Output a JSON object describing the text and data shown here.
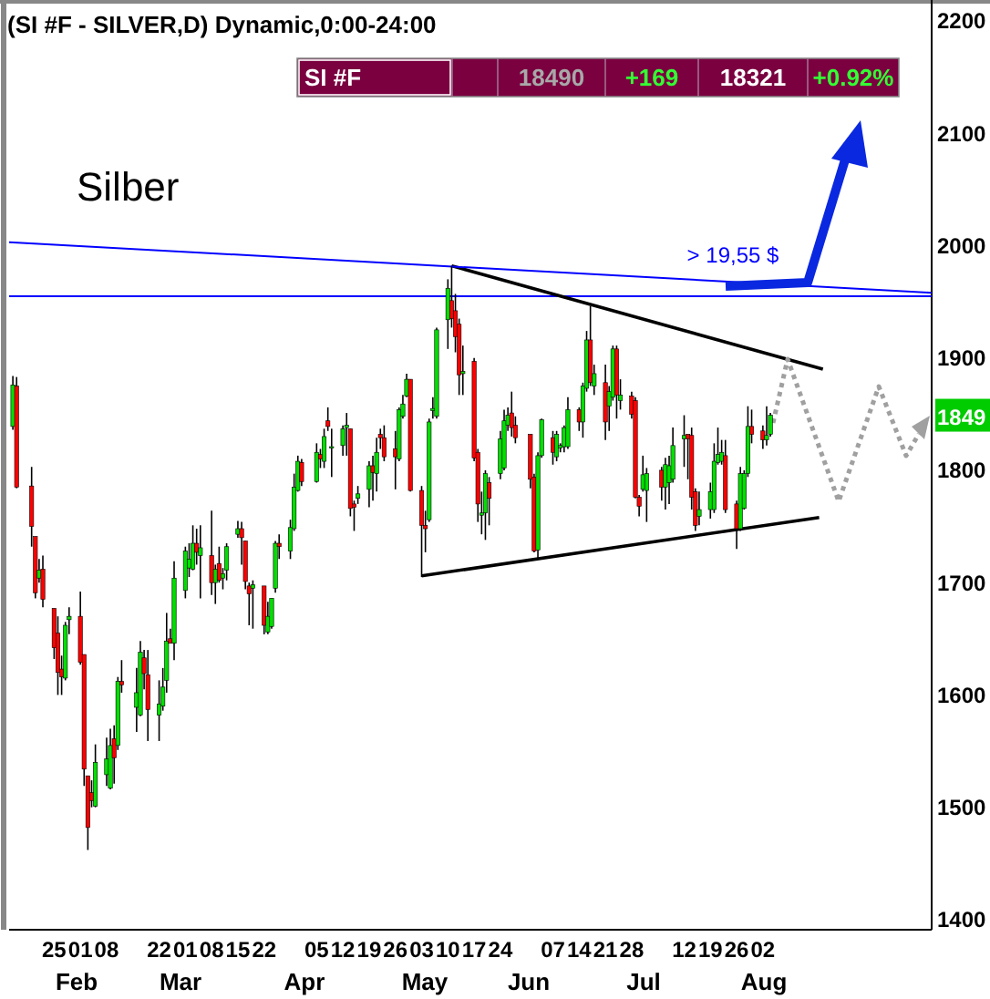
{
  "chart_data": {
    "type": "candlestick",
    "title": "(SI #F - SILVER,D) Dynamic,0:00-24:00",
    "subtitle": "Silber",
    "x": [
      "--01-14",
      "--01-15",
      "--01-19",
      "--01-20",
      "--01-21",
      "--01-22",
      "--01-25",
      "--01-26",
      "--01-27",
      "--01-28",
      "--01-29",
      "--02-01",
      "--02-02",
      "--02-03",
      "--02-04",
      "--02-05",
      "--02-08",
      "--02-09",
      "--02-10",
      "--02-11",
      "--02-12",
      "--02-16",
      "--02-17",
      "--02-18",
      "--02-19",
      "--02-22",
      "--02-23",
      "--02-24",
      "--02-25",
      "--02-26",
      "--03-01",
      "--03-02",
      "--03-03",
      "--03-04",
      "--03-05",
      "--03-08",
      "--03-09",
      "--03-10",
      "--03-11",
      "--03-12",
      "--03-15",
      "--03-16",
      "--03-17",
      "--03-18",
      "--03-19",
      "--03-22",
      "--03-23",
      "--03-24",
      "--03-25",
      "--03-26",
      "--03-29",
      "--03-30",
      "--03-31",
      "--04-01",
      "--04-05",
      "--04-06",
      "--04-07",
      "--04-08",
      "--04-09",
      "--04-12",
      "--04-13",
      "--04-14",
      "--04-15",
      "--04-16",
      "--04-19",
      "--04-20",
      "--04-21",
      "--04-22",
      "--04-23",
      "--04-26",
      "--04-27",
      "--04-28",
      "--04-29",
      "--04-30",
      "--05-03",
      "--05-04",
      "--05-05",
      "--05-06",
      "--05-07",
      "--05-10",
      "--05-11",
      "--05-12",
      "--05-13",
      "--05-14",
      "--05-17",
      "--05-18",
      "--05-19",
      "--05-20",
      "--05-21",
      "--05-24",
      "--05-25",
      "--05-26",
      "--05-27",
      "--05-28",
      "--06-01",
      "--06-02",
      "--06-03",
      "--06-04",
      "--06-07",
      "--06-08",
      "--06-09",
      "--06-10",
      "--06-11",
      "--06-14",
      "--06-15",
      "--06-16",
      "--06-17",
      "--06-18",
      "--06-21",
      "--06-22",
      "--06-23",
      "--06-24",
      "--06-25",
      "--06-28",
      "--06-29",
      "--06-30",
      "--07-01",
      "--07-02",
      "--07-06",
      "--07-07",
      "--07-08",
      "--07-09",
      "--07-12",
      "--07-13",
      "--07-14",
      "--07-15",
      "--07-16",
      "--07-19",
      "--07-20",
      "--07-21",
      "--07-22",
      "--07-23",
      "--07-26",
      "--07-27",
      "--07-28",
      "--07-29",
      "--07-30",
      "--08-02",
      "--08-03",
      "--08-04"
    ],
    "ohlc": [
      [
        1839,
        1884,
        1836,
        1876
      ],
      [
        1875,
        1883,
        1784,
        1785
      ],
      [
        1786,
        1803,
        1732,
        1750
      ],
      [
        1741,
        1741,
        1686,
        1691
      ],
      [
        1704,
        1721,
        1700,
        1711
      ],
      [
        1712,
        1724,
        1678,
        1685
      ],
      [
        1677,
        1677,
        1632,
        1642
      ],
      [
        1655,
        1670,
        1600,
        1620
      ],
      [
        1623,
        1635,
        1600,
        1616
      ],
      [
        1615,
        1665,
        1613,
        1662
      ],
      [
        1667,
        1678,
        1654,
        1670
      ],
      [
        1670,
        1692,
        1627,
        1629
      ],
      [
        1636,
        1636,
        1519,
        1534
      ],
      [
        1528,
        1528,
        1462,
        1482
      ],
      [
        1513,
        1524,
        1500,
        1506
      ],
      [
        1501,
        1556,
        1500,
        1540
      ],
      [
        1529,
        1562,
        1519,
        1543
      ],
      [
        1517,
        1570,
        1516,
        1555
      ],
      [
        1561,
        1573,
        1521,
        1544
      ],
      [
        1555,
        1616,
        1551,
        1612
      ],
      [
        1612,
        1631,
        1602,
        1609
      ],
      [
        1589,
        1624,
        1567,
        1602
      ],
      [
        1582,
        1648,
        1581,
        1638
      ],
      [
        1633,
        1640,
        1605,
        1619
      ],
      [
        1618,
        1640,
        1559,
        1587
      ],
      [
        1582,
        1613,
        1559,
        1592
      ],
      [
        1590,
        1624,
        1586,
        1607
      ],
      [
        1613,
        1673,
        1602,
        1648
      ],
      [
        1650,
        1659,
        1646,
        1646
      ],
      [
        1646,
        1719,
        1631,
        1704
      ],
      [
        1693,
        1732,
        1686,
        1728
      ],
      [
        1713,
        1735,
        1705,
        1721
      ],
      [
        1712,
        1751,
        1711,
        1735
      ],
      [
        1735,
        1748,
        1716,
        1727
      ],
      [
        1724,
        1751,
        1686,
        1731
      ],
      [
        1724,
        1764,
        1689,
        1700
      ],
      [
        1700,
        1716,
        1681,
        1712
      ],
      [
        1717,
        1732,
        1700,
        1702
      ],
      [
        1704,
        1713,
        1694,
        1708
      ],
      [
        1711,
        1735,
        1702,
        1732
      ],
      [
        1743,
        1755,
        1740,
        1748
      ],
      [
        1748,
        1754,
        1716,
        1740
      ],
      [
        1737,
        1737,
        1694,
        1701
      ],
      [
        1697,
        1700,
        1662,
        1690
      ],
      [
        1695,
        1702,
        1659,
        1698
      ],
      [
        1697,
        1697,
        1654,
        1662
      ],
      [
        1656,
        1683,
        1654,
        1670
      ],
      [
        1661,
        1686,
        1659,
        1686
      ],
      [
        1695,
        1737,
        1691,
        1735
      ],
      [
        1735,
        1743,
        1721,
        1732
      ],
      [
        1728,
        1756,
        1721,
        1749
      ],
      [
        1748,
        1797,
        1746,
        1785
      ],
      [
        1782,
        1813,
        1781,
        1808
      ],
      [
        1807,
        1810,
        1786,
        1790
      ],
      [
        1790,
        1824,
        1789,
        1816
      ],
      [
        1814,
        1819,
        1802,
        1810
      ],
      [
        1808,
        1837,
        1802,
        1830
      ],
      [
        1844,
        1856,
        1835,
        1839
      ],
      [
        1820,
        1837,
        1794,
        1821
      ],
      [
        1822,
        1840,
        1813,
        1837
      ],
      [
        1838,
        1851,
        1813,
        1840
      ],
      [
        1837,
        1837,
        1759,
        1766
      ],
      [
        1770,
        1773,
        1746,
        1767
      ],
      [
        1775,
        1786,
        1770,
        1779
      ],
      [
        1783,
        1808,
        1767,
        1804
      ],
      [
        1804,
        1813,
        1773,
        1798
      ],
      [
        1797,
        1829,
        1781,
        1816
      ],
      [
        1832,
        1837,
        1819,
        1829
      ],
      [
        1829,
        1840,
        1808,
        1812
      ],
      [
        1819,
        1835,
        1783,
        1812
      ],
      [
        1810,
        1856,
        1808,
        1854
      ],
      [
        1848,
        1867,
        1846,
        1859
      ],
      [
        1866,
        1886,
        1865,
        1881
      ],
      [
        1881,
        1881,
        1781,
        1782
      ],
      [
        1782,
        1786,
        1705,
        1751
      ],
      [
        1751,
        1764,
        1727,
        1748
      ],
      [
        1756,
        1846,
        1754,
        1843
      ],
      [
        1853,
        1865,
        1846,
        1855
      ],
      [
        1848,
        1927,
        1846,
        1925
      ],
      [
        1934,
        1970,
        1908,
        1962
      ],
      [
        1951,
        1982,
        1927,
        1935
      ],
      [
        1942,
        1957,
        1905,
        1919
      ],
      [
        1930,
        1935,
        1867,
        1885
      ],
      [
        1886,
        1911,
        1867,
        1888
      ],
      [
        1897,
        1900,
        1808,
        1811
      ],
      [
        1816,
        1819,
        1754,
        1770
      ],
      [
        1760,
        1781,
        1743,
        1762
      ],
      [
        1762,
        1800,
        1738,
        1797
      ],
      [
        1789,
        1794,
        1751,
        1775
      ],
      [
        1797,
        1835,
        1792,
        1828
      ],
      [
        1802,
        1854,
        1800,
        1844
      ],
      [
        1840,
        1856,
        1835,
        1849
      ],
      [
        1851,
        1870,
        1830,
        1838
      ],
      [
        1840,
        1848,
        1824,
        1829
      ],
      [
        1832,
        1832,
        1784,
        1792
      ],
      [
        1794,
        1797,
        1727,
        1728
      ],
      [
        1729,
        1816,
        1721,
        1813
      ],
      [
        1813,
        1846,
        1811,
        1845
      ],
      [
        1829,
        1835,
        1805,
        1816
      ],
      [
        1812,
        1835,
        1808,
        1832
      ],
      [
        1820,
        1824,
        1816,
        1822
      ],
      [
        1821,
        1840,
        1816,
        1838
      ],
      [
        1821,
        1865,
        1819,
        1854
      ],
      [
        1854,
        1856,
        1835,
        1843
      ],
      [
        1843,
        1878,
        1829,
        1875
      ],
      [
        1873,
        1924,
        1870,
        1916
      ],
      [
        1916,
        1946,
        1875,
        1878
      ],
      [
        1875,
        1894,
        1867,
        1886
      ],
      [
        1878,
        1894,
        1827,
        1843
      ],
      [
        1857,
        1875,
        1835,
        1870
      ],
      [
        1865,
        1911,
        1862,
        1908
      ],
      [
        1908,
        1911,
        1846,
        1867
      ],
      [
        1862,
        1881,
        1854,
        1867
      ],
      [
        1866,
        1870,
        1846,
        1850
      ],
      [
        1862,
        1865,
        1775,
        1776
      ],
      [
        1776,
        1778,
        1759,
        1768
      ],
      [
        1783,
        1813,
        1781,
        1796
      ],
      [
        1782,
        1802,
        1754,
        1797
      ],
      [
        1800,
        1803,
        1773,
        1785
      ],
      [
        1785,
        1811,
        1765,
        1805
      ],
      [
        1789,
        1813,
        1770,
        1804
      ],
      [
        1792,
        1838,
        1789,
        1822
      ],
      [
        1828,
        1849,
        1803,
        1831
      ],
      [
        1832,
        1832,
        1792,
        1828
      ],
      [
        1831,
        1838,
        1765,
        1776
      ],
      [
        1781,
        1784,
        1746,
        1751
      ],
      [
        1759,
        1781,
        1751,
        1765
      ],
      [
        1765,
        1789,
        1757,
        1781
      ],
      [
        1765,
        1824,
        1762,
        1808
      ],
      [
        1807,
        1838,
        1805,
        1814
      ],
      [
        1808,
        1827,
        1805,
        1816
      ],
      [
        1813,
        1827,
        1762,
        1765
      ],
      [
        1770,
        1773,
        1730,
        1748
      ],
      [
        1748,
        1803,
        1746,
        1797
      ],
      [
        1766,
        1800,
        1765,
        1797
      ],
      [
        1797,
        1857,
        1794,
        1839
      ],
      [
        1839,
        1854,
        1824,
        1832
      ],
      [
        1835,
        1840,
        1819,
        1827
      ],
      [
        1827,
        1857,
        1822,
        1831
      ],
      [
        1832,
        1851,
        1830,
        1849
      ]
    ],
    "series": [
      {
        "type": "line",
        "color": "#000000",
        "x": [
          "--05-11",
          "--08-18"
        ],
        "values": [
          1982,
          1890
        ]
      },
      {
        "type": "line",
        "color": "#000000",
        "x": [
          "--05-03",
          "--08-17"
        ],
        "values": [
          1706,
          1758
        ]
      },
      {
        "type": "line",
        "color": "#0000ff",
        "x": [
          "--01-13",
          "--09-16"
        ],
        "values": [
          2003,
          1958
        ]
      }
    ],
    "ref_lines": [
      {
        "axis": "y",
        "value": 1955,
        "color": "#0000ff"
      }
    ],
    "xlim": [
      "--01-13",
      "--09-16"
    ],
    "xticks": [
      {
        "value": "--01-25",
        "label": "25"
      },
      {
        "value": "--02-01",
        "label": "01"
      },
      {
        "value": "--02-08",
        "label": "08"
      },
      {
        "value": "--02-22",
        "label": "22"
      },
      {
        "value": "--03-01",
        "label": "01"
      },
      {
        "value": "--03-08",
        "label": "08"
      },
      {
        "value": "--03-15",
        "label": "15"
      },
      {
        "value": "--03-22",
        "label": "22"
      },
      {
        "value": "--04-05",
        "label": "05"
      },
      {
        "value": "--04-12",
        "label": "12"
      },
      {
        "value": "--04-19",
        "label": "19"
      },
      {
        "value": "--04-26",
        "label": "26"
      },
      {
        "value": "--05-03",
        "label": "03"
      },
      {
        "value": "--05-10",
        "label": "10"
      },
      {
        "value": "--05-17",
        "label": "17"
      },
      {
        "value": "--05-24",
        "label": "24"
      },
      {
        "value": "--06-07",
        "label": "07"
      },
      {
        "value": "--06-14",
        "label": "14"
      },
      {
        "value": "--06-21",
        "label": "21"
      },
      {
        "value": "--06-28",
        "label": "28"
      },
      {
        "value": "--07-12",
        "label": "12"
      },
      {
        "value": "--07-19",
        "label": "19"
      },
      {
        "value": "--07-26",
        "label": "26"
      },
      {
        "value": "--08-02",
        "label": "02"
      }
    ],
    "ylim": [
      1391,
      2217
    ],
    "yticks": [
      1400,
      1500,
      1600,
      1700,
      1800,
      1900,
      2000,
      2100,
      2200
    ],
    "annotations": [
      "SI #F",
      "18490",
      "+169",
      "18321",
      "+0.92%",
      "> 19,55 $",
      "1849",
      "Feb",
      "Mar",
      "Apr",
      "May",
      "Jun",
      "Jul",
      "Aug"
    ],
    "grid": false
  }
}
